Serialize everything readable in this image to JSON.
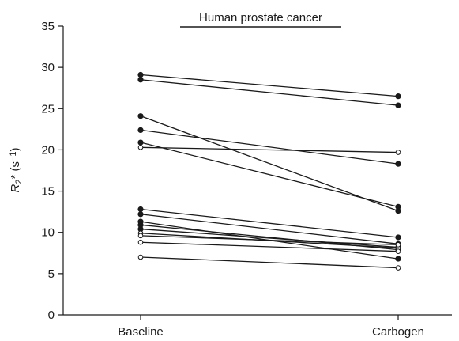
{
  "chart_data": {
    "type": "line",
    "title": "Human prostate cancer",
    "ylabel": {
      "base": "R",
      "subscript": "2",
      "suffix": "* (s",
      "superscript": "−1",
      "close": ")"
    },
    "xlabel": "",
    "categories": [
      "Baseline",
      "Carbogen"
    ],
    "ylim": [
      0,
      35
    ],
    "yticks": [
      "0",
      "5",
      "10",
      "15",
      "20",
      "25",
      "30",
      "35"
    ],
    "grid": false,
    "legend": "none",
    "colors": {
      "line": "#1a1a1a",
      "filled_marker": "#1a1a1a",
      "open_marker_fill": "#ffffff"
    },
    "series": [
      {
        "values": [
          29.1,
          26.5
        ],
        "marker": "filled"
      },
      {
        "values": [
          28.5,
          25.4
        ],
        "marker": "filled"
      },
      {
        "values": [
          24.1,
          12.6
        ],
        "marker": "filled"
      },
      {
        "values": [
          22.4,
          18.3
        ],
        "marker": "filled"
      },
      {
        "values": [
          20.9,
          13.1
        ],
        "marker": "filled"
      },
      {
        "values": [
          20.3,
          19.7
        ],
        "marker": "open"
      },
      {
        "values": [
          12.8,
          9.4
        ],
        "marker": "filled"
      },
      {
        "values": [
          12.2,
          8.6
        ],
        "marker": "filled"
      },
      {
        "values": [
          11.3,
          6.8
        ],
        "marker": "filled"
      },
      {
        "values": [
          10.9,
          7.9
        ],
        "marker": "filled"
      },
      {
        "values": [
          10.4,
          8.2
        ],
        "marker": "filled"
      },
      {
        "values": [
          9.9,
          8.1
        ],
        "marker": "open"
      },
      {
        "values": [
          9.6,
          8.5
        ],
        "marker": "open"
      },
      {
        "values": [
          8.8,
          7.7
        ],
        "marker": "open"
      },
      {
        "values": [
          7.0,
          5.7
        ],
        "marker": "open"
      }
    ]
  }
}
